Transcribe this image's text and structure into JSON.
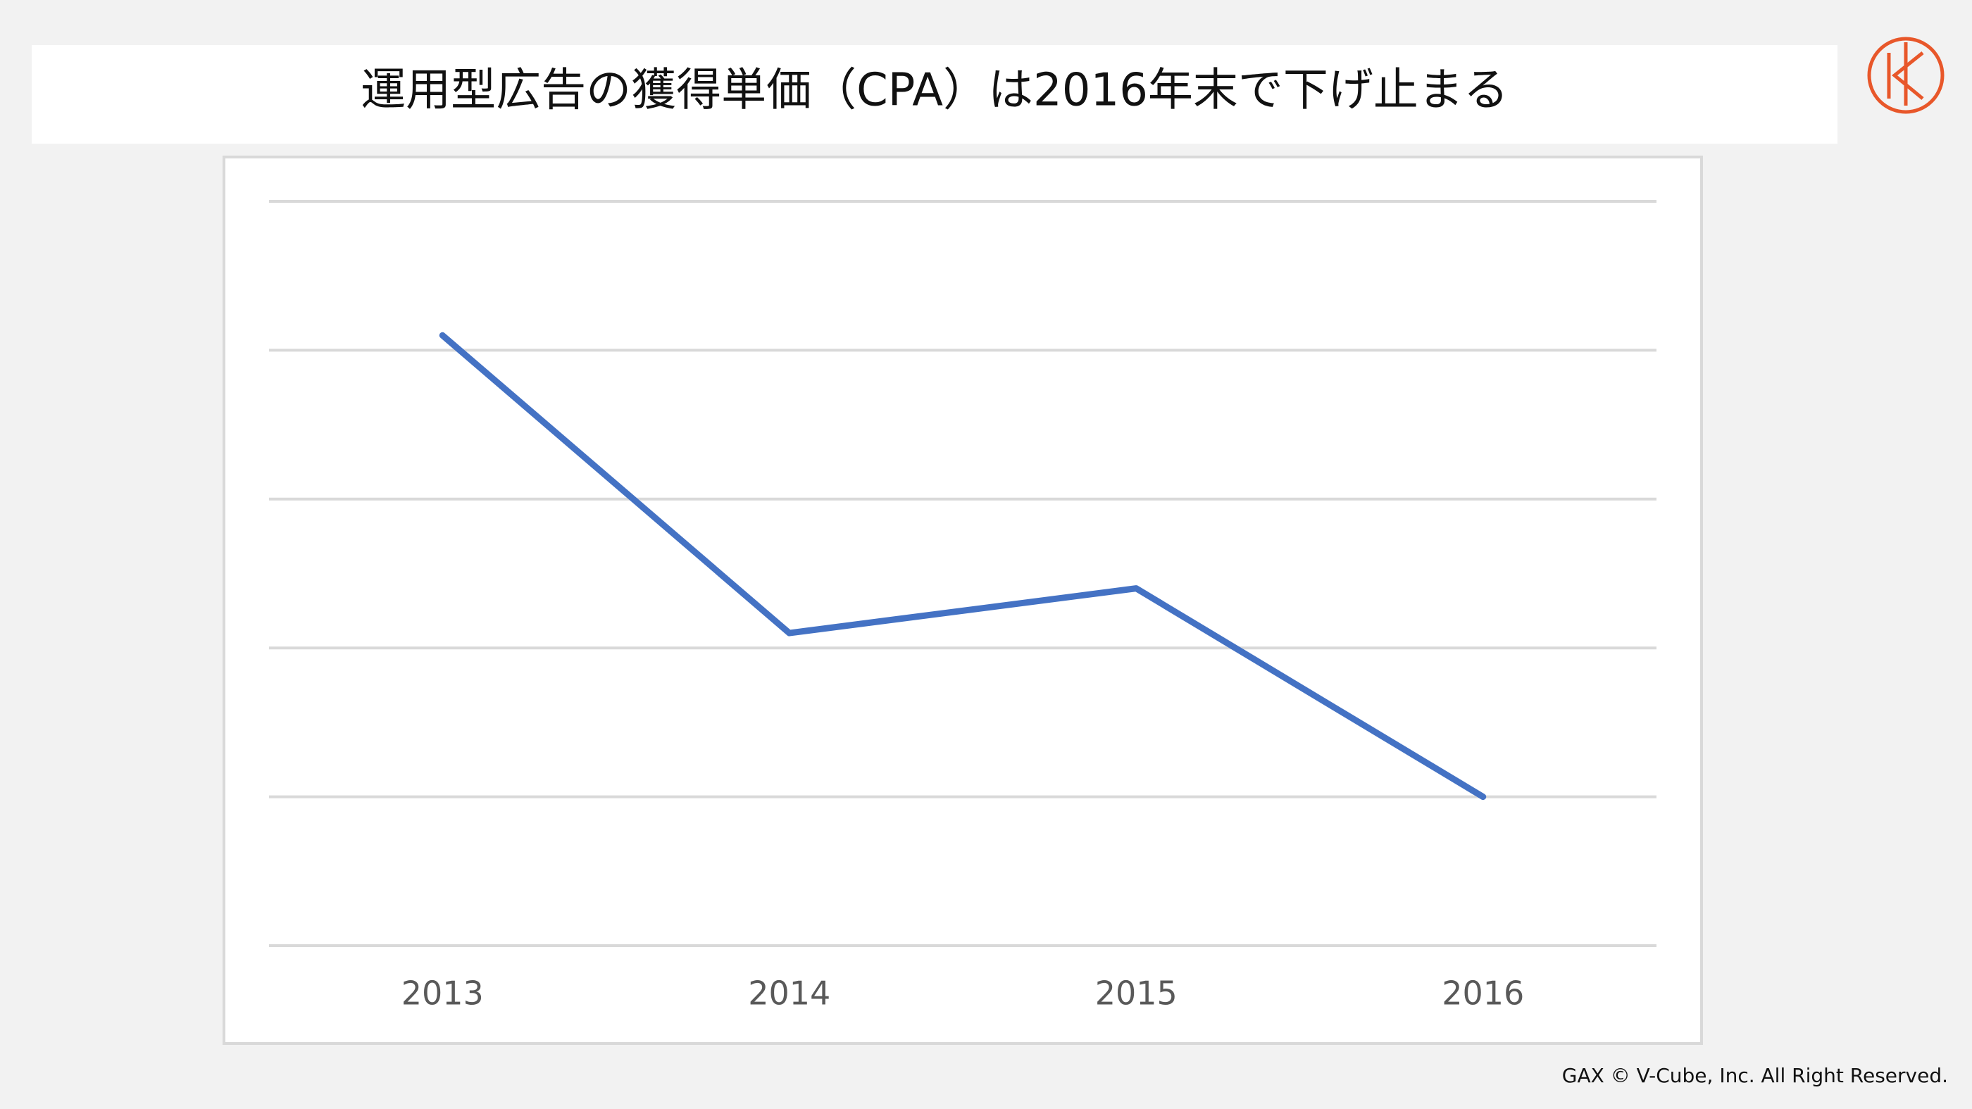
{
  "header": {
    "title": "運用型広告の獲得単価（CPA）は2016年末で下げ止まる"
  },
  "chart_data": {
    "type": "line",
    "categories": [
      "2013",
      "2014",
      "2015",
      "2016"
    ],
    "series": [
      {
        "color": "#4472c4",
        "values": [
          4.1,
          2.1,
          2.4,
          1.0
        ]
      }
    ],
    "ylim": [
      0,
      5
    ],
    "gridlines": [
      0,
      1,
      2,
      3,
      4,
      5
    ],
    "grid": true
  },
  "footer": {
    "copyright": "GAX © V-Cube, Inc. All Right Reserved."
  }
}
